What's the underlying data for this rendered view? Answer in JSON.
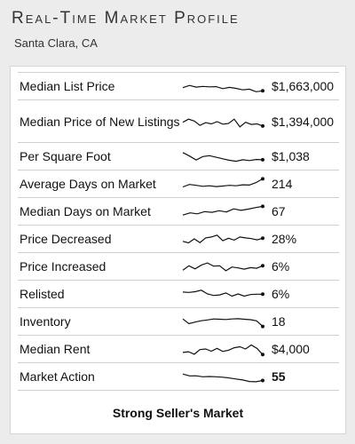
{
  "header": {
    "title": "Real-Time Market Profile",
    "location": "Santa Clara, CA"
  },
  "rows": [
    {
      "label": "Median List Price",
      "value": "$1,663,000",
      "trend": [
        62,
        44,
        58,
        52,
        56,
        54,
        70,
        60,
        68,
        80,
        74,
        95,
        88
      ]
    },
    {
      "label": "Median Price of New Listings",
      "value": "$1,394,000",
      "trend": [
        55,
        30,
        45,
        80,
        58,
        68,
        50,
        70,
        65,
        30,
        92,
        55,
        72,
        68,
        85
      ]
    },
    {
      "label": "Per Square Foot",
      "value": "$1,038",
      "trend": [
        20,
        48,
        80,
        52,
        45,
        58,
        70,
        82,
        90,
        78,
        84,
        76,
        78
      ]
    },
    {
      "label": "Average Days on Market",
      "value": "214",
      "trend": [
        75,
        55,
        62,
        70,
        66,
        72,
        68,
        62,
        66,
        58,
        60,
        40,
        10
      ]
    },
    {
      "label": "Median Days on Market",
      "value": "67",
      "trend": [
        80,
        62,
        70,
        52,
        58,
        45,
        55,
        30,
        42,
        32,
        20,
        10
      ]
    },
    {
      "label": "Price Decreased",
      "value": "28%",
      "trend": [
        70,
        82,
        50,
        80,
        42,
        35,
        20,
        65,
        45,
        60,
        35,
        42,
        48,
        58,
        45
      ]
    },
    {
      "label": "Price Increased",
      "value": "6%",
      "trend": [
        80,
        45,
        70,
        40,
        22,
        48,
        45,
        85,
        55,
        62,
        72,
        60,
        65,
        45
      ]
    },
    {
      "label": "Relisted",
      "value": "6%",
      "trend": [
        35,
        38,
        32,
        20,
        50,
        62,
        58,
        42,
        68,
        50,
        68,
        55,
        52,
        52
      ]
    },
    {
      "label": "Inventory",
      "value": "18",
      "trend": [
        30,
        68,
        55,
        44,
        38,
        30,
        32,
        34,
        30,
        28,
        32,
        36,
        45,
        90
      ]
    },
    {
      "label": "Median Rent",
      "value": "$4,000",
      "trend": [
        78,
        72,
        92,
        55,
        50,
        68,
        45,
        70,
        60,
        40,
        32,
        50,
        18,
        45,
        95
      ]
    },
    {
      "label": "Market Action",
      "value": "55",
      "trend": [
        30,
        45,
        44,
        52,
        50,
        52,
        56,
        62,
        70,
        78,
        90,
        92,
        82
      ]
    }
  ],
  "footer": {
    "label": "Strong Seller's Market"
  }
}
